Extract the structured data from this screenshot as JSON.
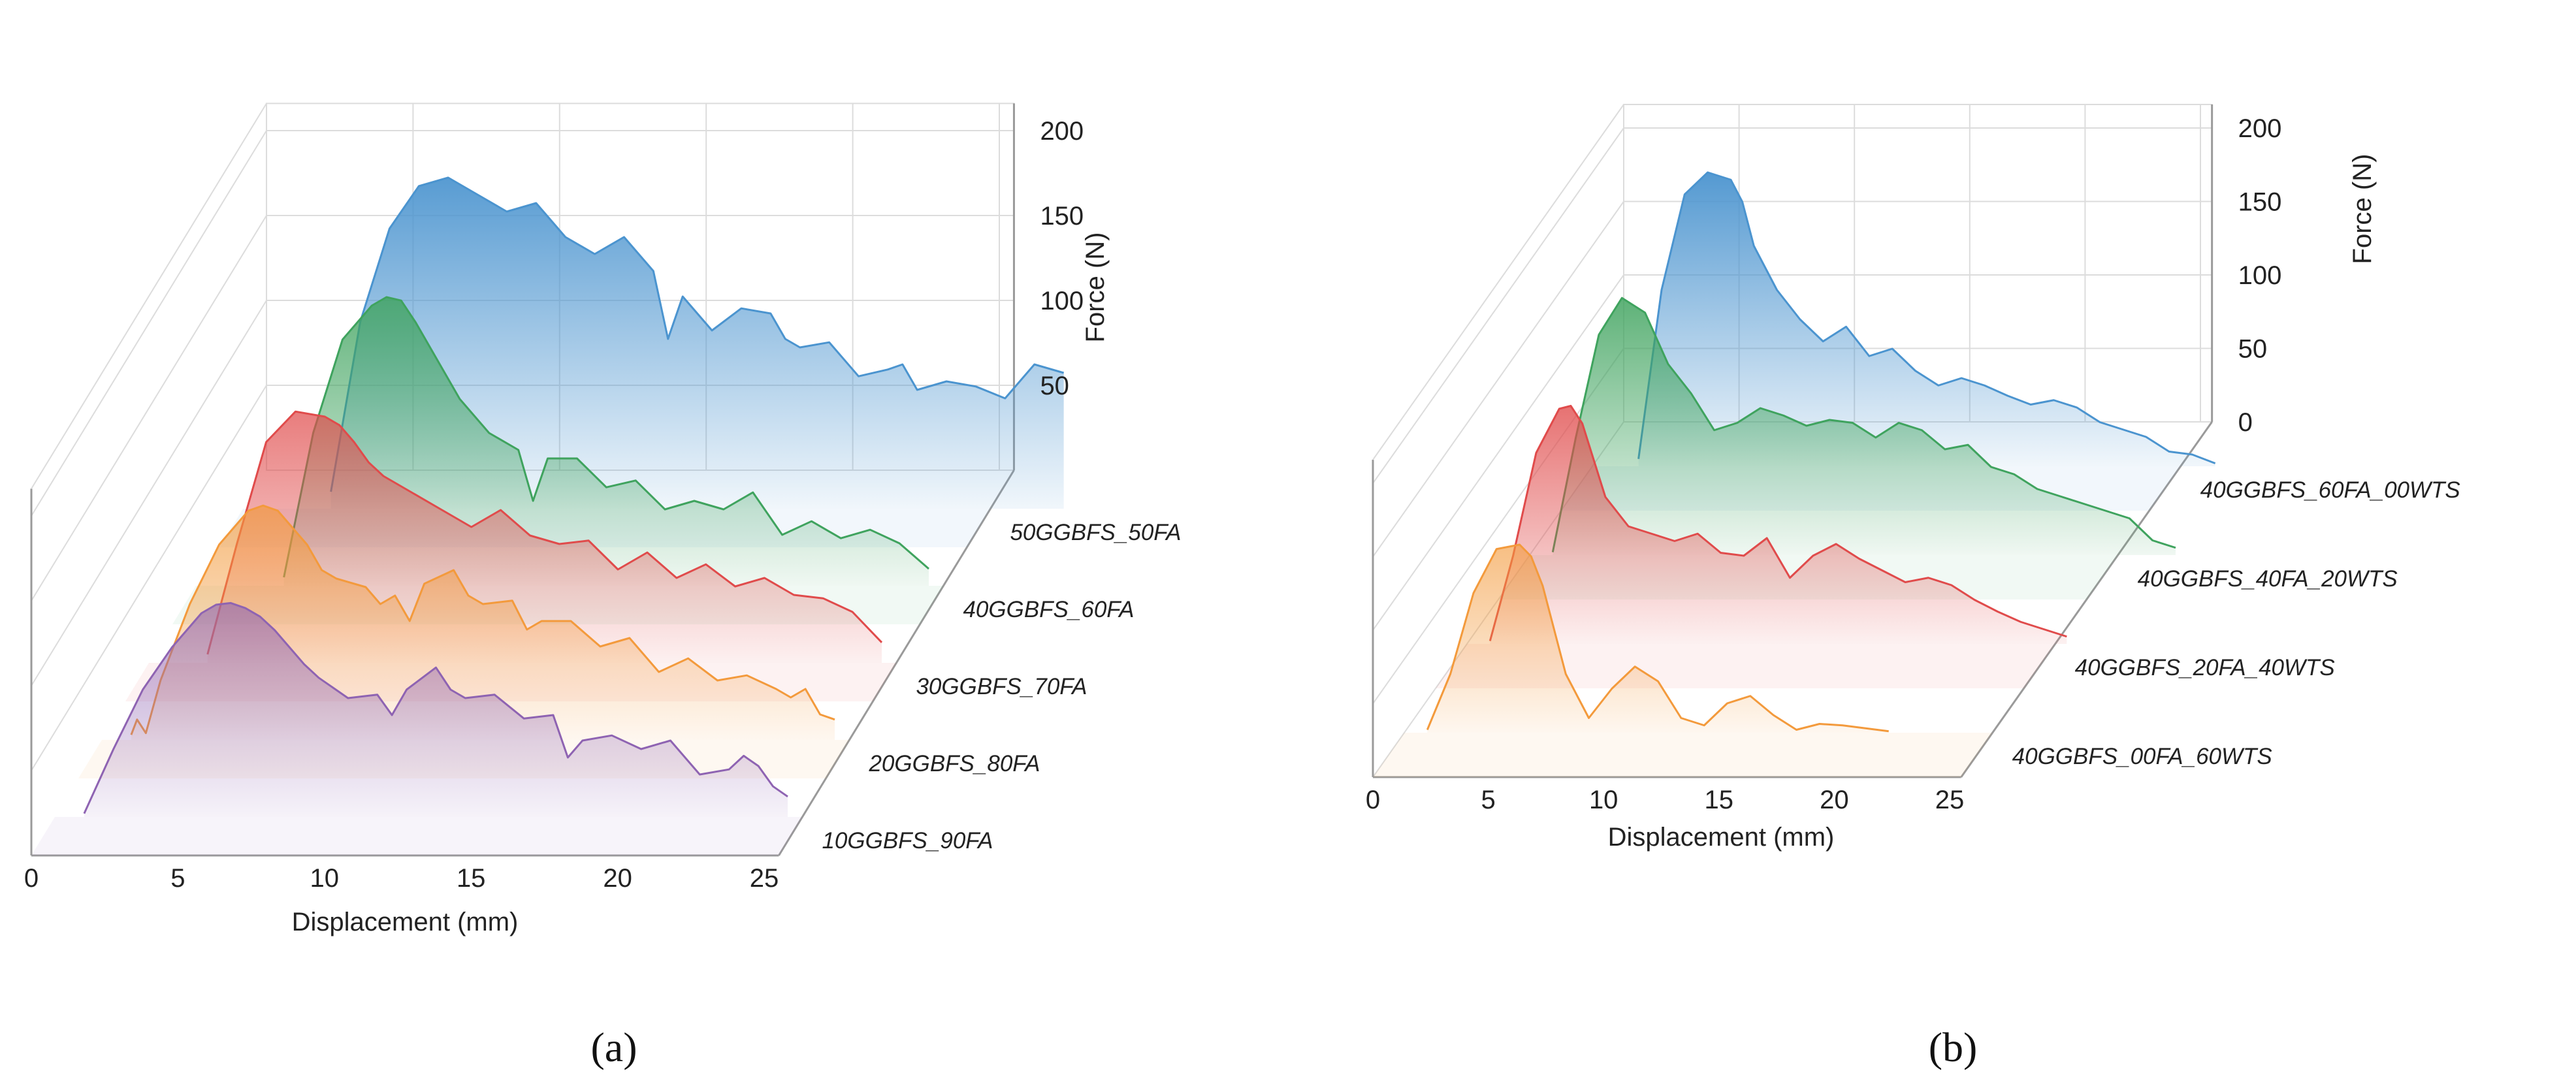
{
  "chart_data": [
    {
      "type": "area",
      "panel_label": "(a)",
      "xlabel": "Displacement (mm)",
      "zlabel": "Force (N)",
      "xlim": [
        0,
        25
      ],
      "zlim": [
        0,
        200
      ],
      "x_ticks": [
        0,
        5,
        10,
        15,
        20,
        25
      ],
      "z_ticks": [
        50,
        100,
        150,
        200
      ],
      "grid": true,
      "series": [
        {
          "name": "10GGBFS_90FA",
          "color": "#8e63b2",
          "x": [
            1,
            2,
            3,
            4,
            5,
            5.5,
            6,
            6.5,
            7,
            7.5,
            8,
            8.5,
            9,
            9.5,
            10,
            11,
            11.5,
            12,
            13,
            13.5,
            14,
            15,
            16,
            17,
            17.5,
            18,
            19,
            20,
            21,
            22,
            23,
            23.5,
            24,
            24.5,
            25
          ],
          "y": [
            2,
            40,
            75,
            100,
            120,
            125,
            126,
            123,
            118,
            110,
            100,
            90,
            82,
            76,
            70,
            72,
            60,
            75,
            88,
            75,
            70,
            72,
            58,
            60,
            35,
            45,
            48,
            40,
            45,
            25,
            28,
            36,
            30,
            18,
            12
          ]
        },
        {
          "name": "20GGBFS_80FA",
          "color": "#f39a3c",
          "x": [
            1,
            1.2,
            1.5,
            2,
            3,
            4,
            5,
            5.5,
            6,
            6.5,
            7,
            7.5,
            8,
            9,
            9.5,
            10,
            10.5,
            11,
            12,
            12.5,
            13,
            14,
            14.5,
            15,
            16,
            17,
            18,
            19,
            20,
            21,
            22,
            23,
            23.5,
            24,
            24.5,
            25
          ],
          "y": [
            3,
            12,
            4,
            35,
            80,
            115,
            135,
            138,
            135,
            125,
            115,
            100,
            95,
            90,
            80,
            85,
            70,
            92,
            100,
            85,
            80,
            82,
            65,
            70,
            70,
            55,
            60,
            40,
            48,
            35,
            38,
            30,
            25,
            30,
            15,
            12
          ]
        },
        {
          "name": "30GGBFS_70FA",
          "color": "#e04b4b",
          "x": [
            2,
            3,
            4,
            5,
            6,
            6.5,
            7,
            7.5,
            8,
            9,
            10,
            11,
            12,
            13,
            14,
            15,
            16,
            17,
            18,
            19,
            20,
            21,
            22,
            23,
            24,
            25
          ],
          "y": [
            5,
            70,
            130,
            148,
            145,
            140,
            130,
            118,
            110,
            100,
            90,
            80,
            90,
            75,
            70,
            72,
            55,
            65,
            50,
            58,
            45,
            50,
            40,
            38,
            30,
            12
          ]
        },
        {
          "name": "40GGBFS_60FA",
          "color": "#3fa35e",
          "x": [
            3,
            4,
            5,
            6,
            6.5,
            7,
            7.5,
            8,
            9,
            10,
            11,
            11.5,
            12,
            13,
            14,
            15,
            16,
            17,
            18,
            19,
            20,
            21,
            22,
            23,
            24,
            25
          ],
          "y": [
            5,
            90,
            145,
            165,
            170,
            168,
            155,
            140,
            110,
            90,
            80,
            50,
            75,
            75,
            58,
            62,
            45,
            50,
            45,
            55,
            30,
            38,
            28,
            33,
            25,
            10
          ]
        },
        {
          "name": "50GGBFS_50FA",
          "color": "#4b94cf",
          "x": [
            3,
            4,
            5,
            6,
            7,
            8,
            9,
            10,
            11,
            12,
            13,
            14,
            14.5,
            15,
            16,
            17,
            18,
            18.5,
            19,
            20,
            21,
            22,
            22.5,
            23,
            24,
            25,
            26,
            27,
            28
          ],
          "y": [
            10,
            110,
            165,
            190,
            195,
            185,
            175,
            180,
            160,
            150,
            160,
            140,
            100,
            125,
            105,
            118,
            115,
            100,
            95,
            98,
            78,
            82,
            85,
            70,
            75,
            72,
            65,
            85,
            80
          ]
        }
      ]
    },
    {
      "type": "area",
      "panel_label": "(b)",
      "xlabel": "Displacement (mm)",
      "zlabel": "Force (N)",
      "xlim": [
        0,
        25
      ],
      "zlim": [
        0,
        200
      ],
      "x_ticks": [
        0,
        5,
        10,
        15,
        20,
        25
      ],
      "z_ticks": [
        0,
        50,
        100,
        150,
        200
      ],
      "grid": true,
      "series": [
        {
          "name": "40GGBFS_00FA_60WTS",
          "color": "#f39a3c",
          "x": [
            1,
            2,
            3,
            4,
            5,
            5.5,
            6,
            7,
            8,
            9,
            10,
            11,
            12,
            13,
            14,
            15,
            16,
            17,
            18,
            19,
            20,
            21
          ],
          "y": [
            2,
            40,
            95,
            125,
            128,
            120,
            100,
            40,
            10,
            30,
            45,
            35,
            10,
            5,
            20,
            25,
            12,
            2,
            6,
            5,
            3,
            1
          ]
        },
        {
          "name": "40GGBFS_20FA_40WTS",
          "color": "#e04b4b",
          "x": [
            1,
            2,
            3,
            4,
            4.5,
            5,
            6,
            7,
            8,
            9,
            10,
            11,
            12,
            13,
            14,
            15,
            16,
            17,
            18,
            19,
            20,
            21,
            22,
            23,
            24,
            25,
            26
          ],
          "y": [
            2,
            60,
            130,
            160,
            162,
            150,
            100,
            80,
            75,
            70,
            75,
            62,
            60,
            72,
            45,
            60,
            68,
            58,
            50,
            42,
            45,
            40,
            30,
            22,
            15,
            10,
            5
          ]
        },
        {
          "name": "40GGBFS_40FA_20WTS",
          "color": "#3fa35e",
          "x": [
            1,
            2,
            3,
            4,
            5,
            6,
            7,
            8,
            9,
            10,
            11,
            12,
            13,
            14,
            15,
            16,
            17,
            18,
            19,
            20,
            21,
            22,
            23,
            24,
            25,
            26,
            27,
            28
          ],
          "y": [
            2,
            80,
            150,
            175,
            165,
            130,
            110,
            85,
            90,
            100,
            95,
            88,
            92,
            90,
            80,
            90,
            85,
            72,
            75,
            60,
            55,
            45,
            40,
            35,
            30,
            25,
            10,
            5
          ]
        },
        {
          "name": "40GGBFS_60FA_00WTS",
          "color": "#4b94cf",
          "x": [
            2,
            3,
            4,
            5,
            6,
            6.5,
            7,
            8,
            9,
            10,
            11,
            12,
            13,
            14,
            15,
            16,
            17,
            18,
            19,
            20,
            21,
            22,
            23,
            24,
            25,
            26,
            27
          ],
          "y": [
            5,
            120,
            185,
            200,
            195,
            180,
            150,
            120,
            100,
            85,
            95,
            75,
            80,
            65,
            55,
            60,
            55,
            48,
            42,
            45,
            40,
            30,
            25,
            20,
            10,
            8,
            2
          ]
        }
      ]
    }
  ]
}
